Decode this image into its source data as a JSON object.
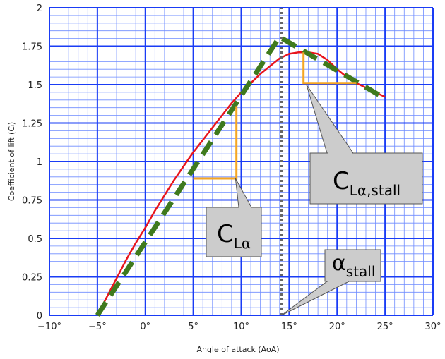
{
  "chart_data": {
    "type": "line",
    "title": "",
    "xlabel": "Angle of attack (AoA)",
    "ylabel": "Coefficient of lift (Cₗ)",
    "xlim": [
      -10,
      30
    ],
    "ylim": [
      0,
      2
    ],
    "x_ticks": [
      "−10°",
      "−5°",
      "0°",
      "5°",
      "10°",
      "15°",
      "20°",
      "25°",
      "30°"
    ],
    "x_tick_values": [
      -10,
      -5,
      0,
      5,
      10,
      15,
      20,
      25,
      30
    ],
    "y_ticks": [
      "0",
      "0.25",
      "0.5",
      "0.75",
      "1",
      "1.25",
      "1.5",
      "1.75",
      "2"
    ],
    "y_tick_values": [
      0,
      0.25,
      0.5,
      0.75,
      1,
      1.25,
      1.5,
      1.75,
      2
    ],
    "grid": true,
    "grid_minor_step_x": 1,
    "grid_minor_step_y": 0.05,
    "series": [
      {
        "style": "solid",
        "color": "#e8141c",
        "x": [
          -5,
          -4,
          -3,
          -2,
          -1,
          0,
          1,
          2,
          3,
          4,
          5,
          6,
          7,
          8,
          9,
          10,
          11,
          12,
          13,
          14,
          15,
          16,
          17,
          18,
          19,
          20,
          21,
          22,
          23,
          24,
          25
        ],
        "y": [
          0.0,
          0.12,
          0.24,
          0.36,
          0.47,
          0.57,
          0.68,
          0.78,
          0.88,
          0.97,
          1.06,
          1.14,
          1.22,
          1.3,
          1.38,
          1.45,
          1.51,
          1.57,
          1.62,
          1.67,
          1.7,
          1.71,
          1.71,
          1.7,
          1.66,
          1.6,
          1.55,
          1.51,
          1.48,
          1.45,
          1.42
        ]
      },
      {
        "style": "dashed",
        "color": "#3f7a1e",
        "x": [
          -5,
          14,
          25
        ],
        "y": [
          0.0,
          1.81,
          1.41
        ]
      },
      {
        "style": "dotted",
        "color": "#666666",
        "x": [
          14.2,
          14.2
        ],
        "y": [
          0,
          2
        ]
      }
    ],
    "slope_triangles": [
      {
        "color": "#f5a623",
        "x": [
          5,
          9.5,
          9.5
        ],
        "y": [
          0.89,
          0.89,
          1.36
        ]
      },
      {
        "color": "#f5a623",
        "x": [
          16.5,
          16.5,
          22
        ],
        "y": [
          1.71,
          1.51,
          1.51
        ]
      }
    ],
    "annotations": [
      {
        "id": "cla",
        "main": "C",
        "sub": "Lα",
        "pointer": [
          9.4,
          0.89
        ]
      },
      {
        "id": "cla-stall",
        "main": "C",
        "sub": "Lα,stall",
        "pointer": [
          16.8,
          1.5
        ]
      },
      {
        "id": "alpha-stall",
        "main": "α",
        "sub": "stall",
        "pointer": [
          14.2,
          0
        ]
      }
    ]
  }
}
